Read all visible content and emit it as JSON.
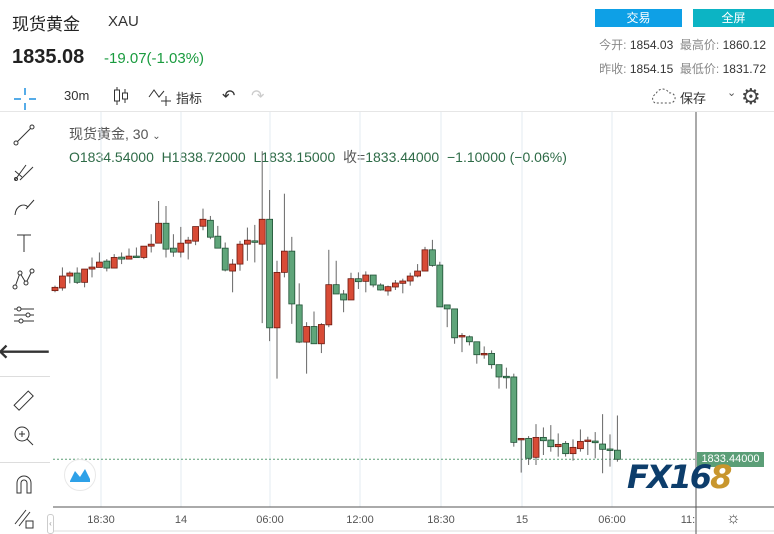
{
  "header": {
    "title": "现货黄金",
    "symbol": "XAU",
    "price": "1835.08",
    "change": "-19.07(-1.03%)",
    "trade_label": "交易",
    "fullscreen_label": "全屏",
    "open_label": "今开:",
    "open": "1854.03",
    "high_label": "最高价:",
    "high": "1860.12",
    "prev_close_label": "昨收:",
    "prev_close": "1854.15",
    "low_label": "最低价:",
    "low": "1831.72"
  },
  "toolbar": {
    "interval": "30m",
    "indicators_label": "指标",
    "save_label": "保存"
  },
  "icons": {
    "crosshair": "crosshair-icon",
    "candles": "candlestick-icon",
    "indicators": "indicator-icon",
    "undo": "undo-icon",
    "redo": "redo-icon",
    "cloud": "cloud-icon",
    "settings": "gear-icon"
  },
  "legend": {
    "name": "现货黄金, 30",
    "open": "O1834.54000",
    "high": "H1838.72000",
    "low": "L1833.15000",
    "close_label": "收=",
    "close": "1833.44000",
    "change": "−1.10000 (−0.06%)"
  },
  "colors": {
    "up": "#d84b36",
    "down": "#5fa57a",
    "accent": "#0ea0e6"
  },
  "last_price_label": "1833.44000",
  "watermark": "FX168",
  "chart_data": {
    "type": "candlestick",
    "x_ticks": [
      "18:30",
      "14",
      "06:00",
      "12:00",
      "18:30",
      "15",
      "06:00",
      "11:"
    ],
    "last_close": 1833.44,
    "candles": [
      [
        1853.76,
        1854.36,
        1853.56,
        1854.16
      ],
      [
        1854.08,
        1856.56,
        1853.76,
        1855.52
      ],
      [
        1855.52,
        1856.08,
        1854.64,
        1855.88
      ],
      [
        1855.88,
        1856.56,
        1854.56,
        1854.76
      ],
      [
        1854.76,
        1856.36,
        1854.16,
        1856.36
      ],
      [
        1856.36,
        1857.76,
        1855.36,
        1856.6
      ],
      [
        1856.56,
        1858.36,
        1856.56,
        1857.2
      ],
      [
        1857.32,
        1857.56,
        1856.08,
        1856.48
      ],
      [
        1856.48,
        1858.16,
        1856.48,
        1857.76
      ],
      [
        1857.8,
        1858.36,
        1856.96,
        1857.56
      ],
      [
        1857.56,
        1858.84,
        1857.56,
        1857.92
      ],
      [
        1857.92,
        1858.96,
        1857.76,
        1857.8
      ],
      [
        1857.76,
        1859.12,
        1857.56,
        1859.12
      ],
      [
        1859.12,
        1860.56,
        1858.36,
        1859.36
      ],
      [
        1859.48,
        1864.56,
        1859.48,
        1861.88
      ],
      [
        1861.88,
        1863.96,
        1857.76,
        1858.76
      ],
      [
        1858.88,
        1860.56,
        1857.84,
        1858.4
      ],
      [
        1858.4,
        1861.44,
        1857.76,
        1859.48
      ],
      [
        1859.48,
        1860.24,
        1857.52,
        1859.84
      ],
      [
        1859.72,
        1861.48,
        1859.24,
        1861.48
      ],
      [
        1861.52,
        1863.64,
        1861.04,
        1862.36
      ],
      [
        1862.24,
        1862.76,
        1859.96,
        1860.2
      ],
      [
        1860.32,
        1861.56,
        1858.88,
        1858.88
      ],
      [
        1858.88,
        1859.56,
        1856.08,
        1856.24
      ],
      [
        1856.12,
        1857.56,
        1853.56,
        1856.96
      ],
      [
        1856.96,
        1859.76,
        1856.16,
        1859.36
      ],
      [
        1859.36,
        1861.36,
        1857.36,
        1859.84
      ],
      [
        1859.76,
        1861.68,
        1857.16,
        1859.72
      ],
      [
        1859.36,
        1870.56,
        1849.84,
        1862.36
      ],
      [
        1862.36,
        1865.88,
        1847.68,
        1849.28
      ],
      [
        1849.28,
        1857.36,
        1843.16,
        1855.96
      ],
      [
        1855.96,
        1865.44,
        1855.36,
        1858.52
      ],
      [
        1858.52,
        1860.24,
        1849.76,
        1852.16
      ],
      [
        1852.04,
        1854.64,
        1847.44,
        1847.56
      ],
      [
        1847.56,
        1849.96,
        1843.76,
        1849.44
      ],
      [
        1849.44,
        1851.24,
        1847.36,
        1847.36
      ],
      [
        1847.36,
        1849.84,
        1846.24,
        1849.68
      ],
      [
        1849.64,
        1858.68,
        1849.36,
        1854.48
      ],
      [
        1854.48,
        1857.36,
        1853.36,
        1853.36
      ],
      [
        1853.36,
        1853.84,
        1851.16,
        1852.64
      ],
      [
        1852.64,
        1855.92,
        1852.64,
        1855.2
      ],
      [
        1855.2,
        1855.96,
        1853.96,
        1854.84
      ],
      [
        1854.88,
        1856.08,
        1853.56,
        1855.64
      ],
      [
        1855.64,
        1855.64,
        1854.16,
        1854.44
      ],
      [
        1854.44,
        1854.64,
        1853.76,
        1853.84
      ],
      [
        1853.72,
        1854.36,
        1853.16,
        1854.24
      ],
      [
        1854.2,
        1855.04,
        1853.84,
        1854.68
      ],
      [
        1854.64,
        1855.2,
        1853.44,
        1854.92
      ],
      [
        1854.92,
        1855.92,
        1854.36,
        1855.52
      ],
      [
        1855.52,
        1856.96,
        1855.36,
        1856.12
      ],
      [
        1856.12,
        1859.04,
        1856.12,
        1858.68
      ],
      [
        1858.68,
        1859.88,
        1856.64,
        1856.8
      ],
      [
        1856.84,
        1857.24,
        1851.8,
        1851.8
      ],
      [
        1852.04,
        1852.04,
        1849.36,
        1851.56
      ],
      [
        1851.56,
        1851.56,
        1847.36,
        1848.08
      ],
      [
        1848.2,
        1848.64,
        1846.36,
        1848.36
      ],
      [
        1848.2,
        1848.36,
        1847.16,
        1847.6
      ],
      [
        1847.6,
        1847.6,
        1844.96,
        1846.04
      ],
      [
        1846.04,
        1847.04,
        1845.56,
        1846.2
      ],
      [
        1846.2,
        1846.56,
        1844.36,
        1844.84
      ],
      [
        1844.84,
        1844.84,
        1841.96,
        1843.36
      ],
      [
        1843.44,
        1844.48,
        1841.96,
        1843.28
      ],
      [
        1843.36,
        1843.76,
        1834.96,
        1835.48
      ],
      [
        1835.84,
        1835.96,
        1831.84,
        1835.96
      ],
      [
        1835.96,
        1836.24,
        1832.76,
        1833.56
      ],
      [
        1833.68,
        1837.68,
        1832.76,
        1836.08
      ],
      [
        1836.08,
        1837.28,
        1833.96,
        1835.68
      ],
      [
        1835.76,
        1837.56,
        1834.36,
        1834.96
      ],
      [
        1834.96,
        1836.56,
        1833.76,
        1835.24
      ],
      [
        1835.36,
        1835.64,
        1833.76,
        1834.12
      ],
      [
        1834.12,
        1835.84,
        1833.28,
        1834.88
      ],
      [
        1834.72,
        1837.04,
        1834.36,
        1835.6
      ],
      [
        1835.6,
        1836.16,
        1833.96,
        1835.76
      ],
      [
        1835.64,
        1836.72,
        1833.56,
        1835.44
      ],
      [
        1835.28,
        1838.88,
        1831.76,
        1834.64
      ],
      [
        1834.68,
        1836.44,
        1832.56,
        1834.52
      ],
      [
        1834.54,
        1838.72,
        1833.15,
        1833.44
      ]
    ]
  }
}
